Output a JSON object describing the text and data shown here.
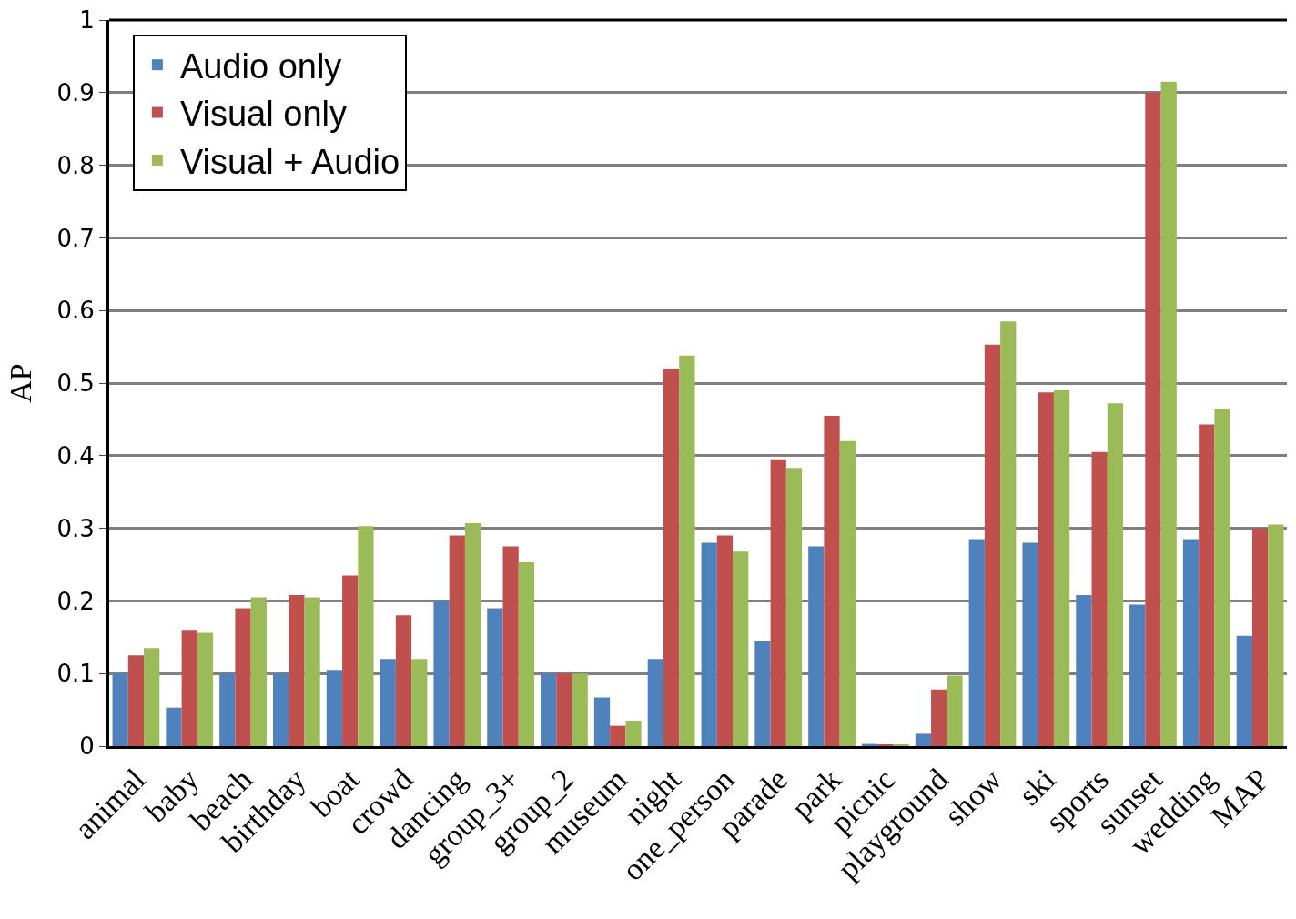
{
  "chart_data": {
    "type": "bar",
    "ylabel": "AP",
    "categories": [
      "animal",
      "baby",
      "beach",
      "birthday",
      "boat",
      "crowd",
      "dancing",
      "group_3+",
      "group_2",
      "museum",
      "night",
      "one_person",
      "parade",
      "park",
      "picnic",
      "playground",
      "show",
      "ski",
      "sports",
      "sunset",
      "wedding",
      "MAP"
    ],
    "series": [
      {
        "name": "Audio only",
        "color": "#4f81bd",
        "values": [
          0.1,
          0.053,
          0.1,
          0.1,
          0.105,
          0.12,
          0.2,
          0.19,
          0.1,
          0.067,
          0.12,
          0.28,
          0.145,
          0.275,
          0.003,
          0.017,
          0.285,
          0.28,
          0.208,
          0.195,
          0.285,
          0.152
        ]
      },
      {
        "name": "Visual only",
        "color": "#c0504d",
        "values": [
          0.125,
          0.16,
          0.19,
          0.208,
          0.235,
          0.18,
          0.29,
          0.275,
          0.1,
          0.028,
          0.52,
          0.29,
          0.395,
          0.455,
          0.002,
          0.078,
          0.553,
          0.487,
          0.405,
          0.9,
          0.443,
          0.3
        ]
      },
      {
        "name": "Visual + Audio",
        "color": "#9bbb59",
        "values": [
          0.135,
          0.156,
          0.205,
          0.205,
          0.303,
          0.12,
          0.307,
          0.253,
          0.1,
          0.035,
          0.538,
          0.268,
          0.383,
          0.42,
          0.002,
          0.097,
          0.585,
          0.49,
          0.472,
          0.915,
          0.465,
          0.305
        ]
      }
    ],
    "ylim": [
      0,
      1
    ],
    "yticks": [
      0,
      0.1,
      0.2,
      0.3,
      0.4,
      0.5,
      0.6,
      0.7,
      0.8,
      0.9,
      1
    ],
    "grid": "y",
    "legend": "top left"
  }
}
